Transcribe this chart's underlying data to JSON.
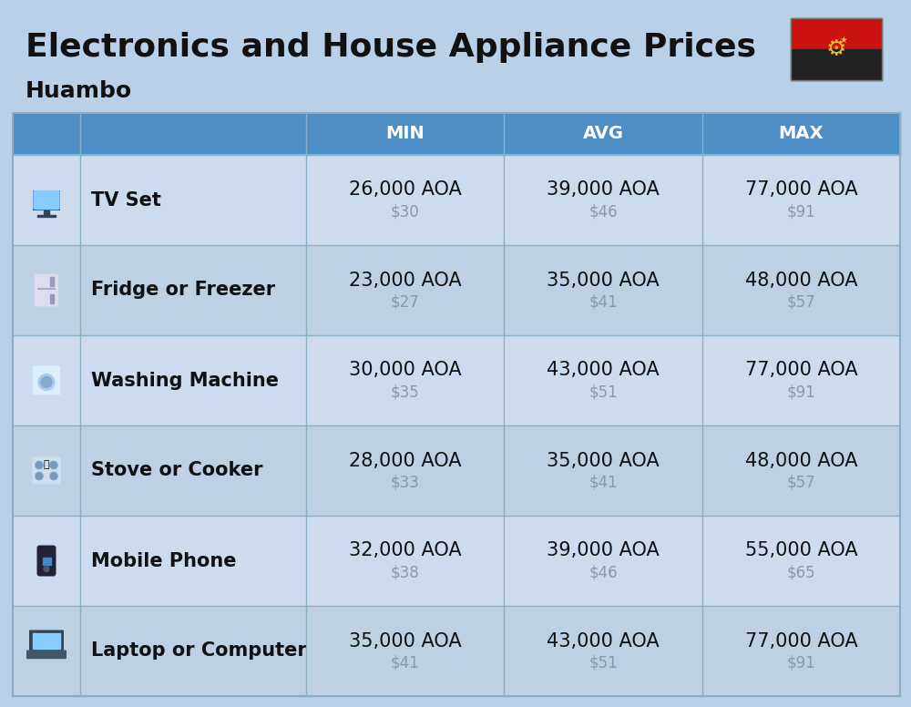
{
  "title": "Electronics and House Appliance Prices",
  "subtitle": "Huambo",
  "background_color": "#b8d0e8",
  "header_color": "#4d8fc4",
  "header_text_color": "#ffffff",
  "row_colors": [
    "#ccdcee",
    "#bdd0e4"
  ],
  "divider_color": "#8aaec8",
  "text_dark": "#111111",
  "text_gray": "#8899aa",
  "columns": [
    "MIN",
    "AVG",
    "MAX"
  ],
  "items": [
    {
      "name": "TV Set",
      "min_aoa": "26,000 AOA",
      "min_usd": "$30",
      "avg_aoa": "39,000 AOA",
      "avg_usd": "$46",
      "max_aoa": "77,000 AOA",
      "max_usd": "$91"
    },
    {
      "name": "Fridge or Freezer",
      "min_aoa": "23,000 AOA",
      "min_usd": "$27",
      "avg_aoa": "35,000 AOA",
      "avg_usd": "$41",
      "max_aoa": "48,000 AOA",
      "max_usd": "$57"
    },
    {
      "name": "Washing Machine",
      "min_aoa": "30,000 AOA",
      "min_usd": "$35",
      "avg_aoa": "43,000 AOA",
      "avg_usd": "$51",
      "max_aoa": "77,000 AOA",
      "max_usd": "$91"
    },
    {
      "name": "Stove or Cooker",
      "min_aoa": "28,000 AOA",
      "min_usd": "$33",
      "avg_aoa": "35,000 AOA",
      "avg_usd": "$41",
      "max_aoa": "48,000 AOA",
      "max_usd": "$57"
    },
    {
      "name": "Mobile Phone",
      "min_aoa": "32,000 AOA",
      "min_usd": "$38",
      "avg_aoa": "39,000 AOA",
      "avg_usd": "$46",
      "max_aoa": "55,000 AOA",
      "max_usd": "$65"
    },
    {
      "name": "Laptop or Computer",
      "min_aoa": "35,000 AOA",
      "min_usd": "$41",
      "avg_aoa": "43,000 AOA",
      "avg_usd": "$51",
      "max_aoa": "77,000 AOA",
      "max_usd": "$91"
    }
  ],
  "flag_red": "#cc1111",
  "flag_black": "#222222",
  "flag_yellow": "#f0c030",
  "title_fontsize": 26,
  "subtitle_fontsize": 18,
  "header_fontsize": 14,
  "item_name_fontsize": 15,
  "price_fontsize": 15,
  "usd_fontsize": 12
}
